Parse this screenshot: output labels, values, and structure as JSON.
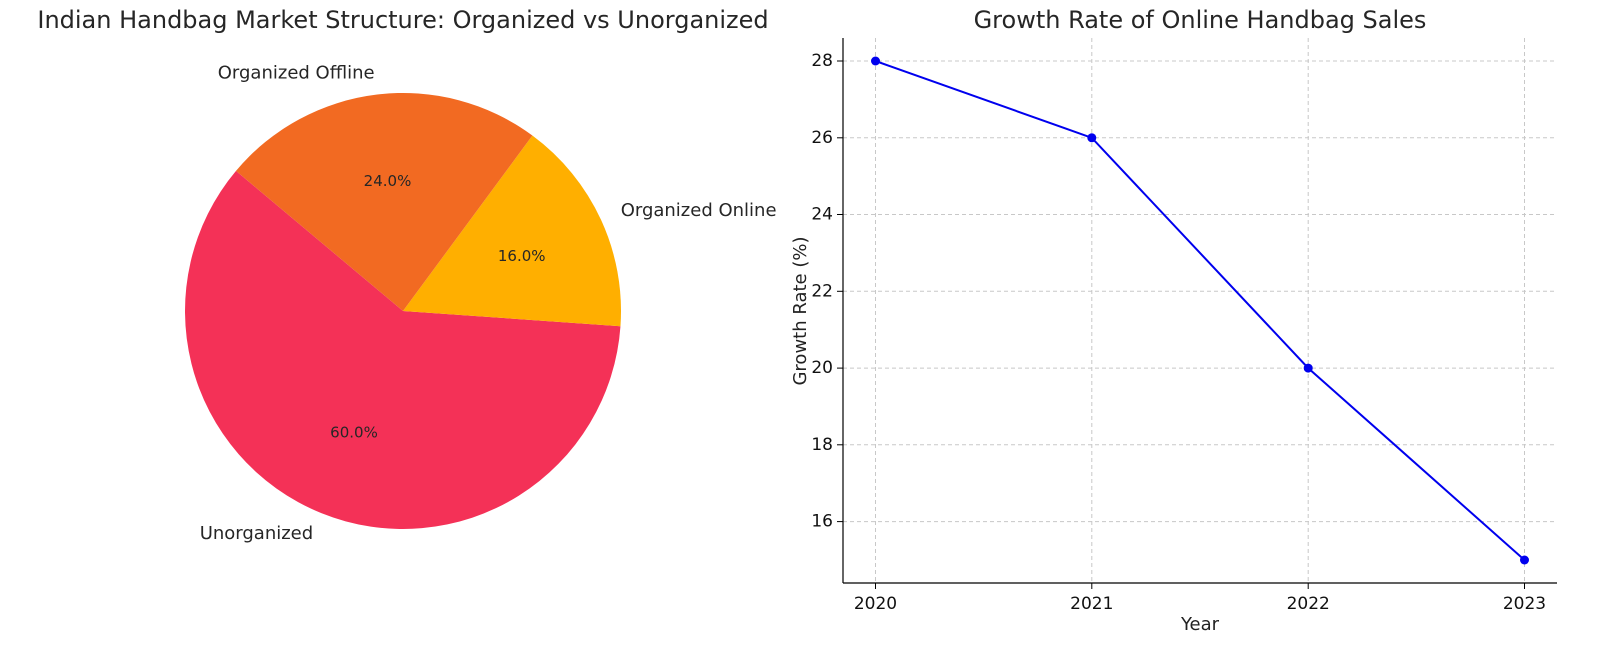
{
  "chart_data": [
    {
      "type": "pie",
      "title": "Indian Handbag Market Structure: Organized vs Unorganized",
      "slices": [
        {
          "label": "Unorganized",
          "value": 60.0,
          "pct_label": "60.0%",
          "color": "#f43157"
        },
        {
          "label": "Organized Online",
          "value": 16.0,
          "pct_label": "16.0%",
          "color": "#ffaf00"
        },
        {
          "label": "Organized Offline",
          "value": 24.0,
          "pct_label": "24.0%",
          "color": "#f26a22"
        }
      ],
      "start_angle_deg": 140,
      "direction": "counterclockwise"
    },
    {
      "type": "line",
      "title": "Growth Rate of Online Handbag Sales",
      "xlabel": "Year",
      "ylabel": "Growth Rate (%)",
      "x": [
        2020,
        2021,
        2022,
        2023
      ],
      "series": [
        {
          "values": [
            28,
            26,
            20,
            15
          ],
          "color": "#0000ee",
          "marker": "circle"
        }
      ],
      "ylim": [
        14.4,
        28.6
      ],
      "yticks": [
        16,
        18,
        20,
        22,
        24,
        26,
        28
      ],
      "grid": true
    }
  ]
}
